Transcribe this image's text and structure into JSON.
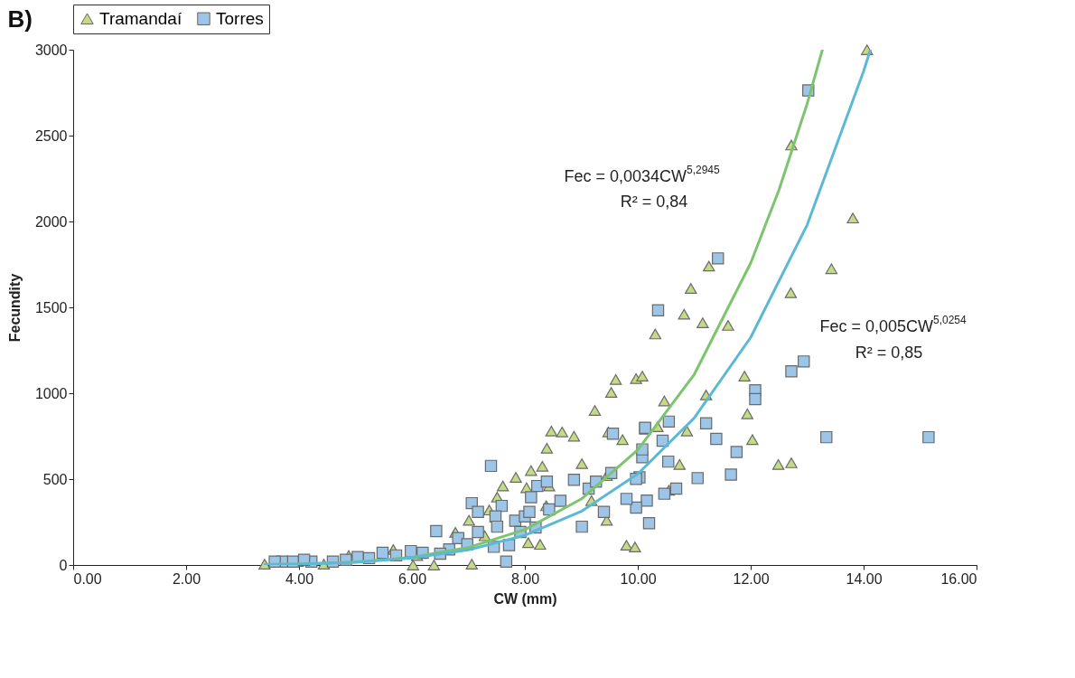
{
  "chart_data": {
    "type": "scatter",
    "title": "B)",
    "xlabel": "CW (mm)",
    "ylabel": "Fecundity",
    "xlim": [
      0,
      16
    ],
    "ylim": [
      0,
      3000
    ],
    "xticks": [
      {
        "value": 0,
        "label": "0.00"
      },
      {
        "value": 2,
        "label": "2.00"
      },
      {
        "value": 4,
        "label": "4.00"
      },
      {
        "value": 6,
        "label": "6.00"
      },
      {
        "value": 8,
        "label": "8.00"
      },
      {
        "value": 10,
        "label": "10.00"
      },
      {
        "value": 12,
        "label": "12.00"
      },
      {
        "value": 14,
        "label": "14.00"
      },
      {
        "value": 16,
        "label": "16.00"
      }
    ],
    "yticks": [
      0,
      500,
      1000,
      1500,
      2000,
      2500,
      3000
    ],
    "grid": false,
    "legend": "top",
    "series": [
      {
        "name": "Tramandaí",
        "marker": "triangle",
        "color": "#c4da84",
        "x": [
          3.39,
          4.44,
          6.02,
          6.39,
          7.06,
          8.27,
          9.8,
          9.95,
          9.45,
          8.06,
          9.61,
          9.53,
          9.97,
          10.08,
          9.24,
          8.47,
          8.66,
          8.87,
          9.48,
          9.73,
          8.39,
          9.01,
          8.31,
          8.11,
          7.84,
          7.61,
          8.03,
          8.43,
          8.38,
          7.51,
          7.37,
          7.01,
          6.77,
          7.29,
          9.45,
          9.18,
          5.67,
          4.88,
          3.98,
          6.09,
          10.31,
          11.15,
          11.6,
          11.89,
          11.21,
          10.47,
          11.94,
          12.03,
          10.87,
          10.35,
          12.49,
          12.72,
          10.74,
          10.55,
          14.06,
          12.72,
          13.81,
          13.43,
          12.71,
          11.26,
          10.94,
          10.82
        ],
        "values": [
          5,
          5,
          0,
          0,
          5,
          120,
          115,
          105,
          260,
          130,
          1080,
          1005,
          1085,
          1100,
          900,
          780,
          775,
          750,
          775,
          730,
          680,
          590,
          575,
          550,
          510,
          460,
          450,
          460,
          345,
          395,
          320,
          260,
          190,
          170,
          520,
          375,
          90,
          55,
          20,
          55,
          1345,
          1410,
          1395,
          1100,
          990,
          955,
          880,
          730,
          780,
          805,
          585,
          595,
          585,
          435,
          3000,
          2445,
          2020,
          1725,
          1585,
          1740,
          1610,
          1460
        ]
      },
      {
        "name": "Torres",
        "marker": "square",
        "color": "#9cc5e8",
        "x": [
          13.02,
          11.42,
          10.36,
          12.94,
          12.72,
          12.08,
          12.08,
          13.34,
          15.15,
          11.21,
          11.39,
          10.55,
          10.13,
          10.44,
          11.75,
          10.54,
          11.65,
          11.06,
          10.68,
          10.47,
          10.16,
          9.97,
          10.2,
          10.03,
          10.08,
          7.4,
          6.43,
          7.06,
          7.17,
          7.59,
          7.48,
          7.51,
          7.17,
          6.82,
          7.83,
          8.0,
          8.08,
          8.22,
          8.11,
          8.39,
          8.63,
          8.87,
          9.01,
          9.13,
          9.26,
          9.4,
          9.53,
          9.56,
          9.8,
          9.97,
          10.08,
          10.13,
          7.67,
          7.72,
          7.45,
          6.98,
          6.66,
          6.5,
          6.19,
          5.98,
          5.72,
          5.48,
          5.24,
          5.04,
          4.83,
          4.6,
          4.22,
          4.09,
          3.89,
          3.7,
          3.57,
          8.43,
          8.19,
          7.92
        ],
        "values": [
          2763,
          1785,
          1483,
          1185,
          1128,
          1017,
          966,
          744,
          744,
          825,
          734,
          835,
          794,
          724,
          658,
          602,
          526,
          506,
          445,
          415,
          375,
          334,
          243,
          511,
          628,
          577,
          197,
          360,
          309,
          344,
          283,
          223,
          192,
          157,
          258,
          283,
          309,
          460,
          395,
          486,
          374,
          496,
          223,
          445,
          486,
          309,
          536,
          764,
          385,
          501,
          673,
          799,
          20,
          116,
          106,
          121,
          91,
          66,
          71,
          81,
          56,
          71,
          40,
          46,
          30,
          20,
          20,
          30,
          20,
          20,
          20,
          324,
          218,
          192
        ]
      },
      {
        "type": "line",
        "color": "#7cc46e",
        "x": [
          3.4,
          4,
          5,
          6,
          7,
          8,
          9,
          10,
          11,
          12,
          12.5,
          13,
          13.27
        ],
        "values": [
          2,
          5,
          17,
          45,
          102,
          206,
          384,
          670,
          1109,
          1758,
          2183,
          2686,
          3000
        ]
      },
      {
        "type": "line",
        "color": "#5cb9d6",
        "x": [
          3.4,
          4,
          5,
          6,
          7,
          8,
          9,
          10,
          11,
          12,
          13,
          14,
          14.12
        ],
        "values": [
          2,
          5,
          16,
          41,
          88,
          173,
          312,
          530,
          856,
          1325,
          1980,
          2875,
          3000
        ]
      }
    ],
    "annotations": [
      "Fec = 0,0034CW$^{5,2945}$",
      "R² = 0,84",
      "Fec = 0,005CW$^{5,0254}$",
      "R² = 0,85"
    ]
  }
}
